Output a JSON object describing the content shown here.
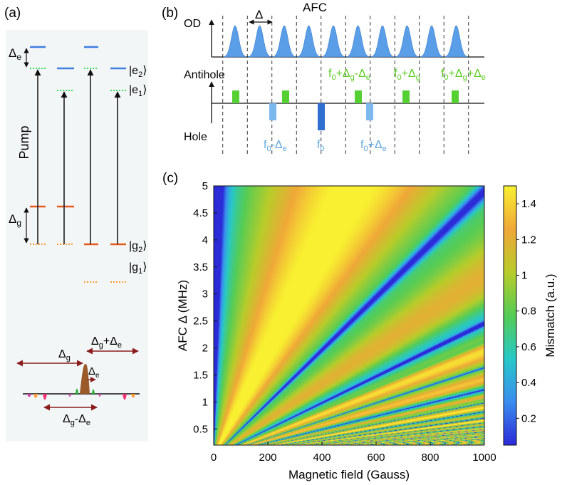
{
  "panel_a": {
    "label": "(a)",
    "pump": "Pump",
    "delta_e": "Δ",
    "delta_e_sub": "e",
    "delta_g": "Δ",
    "delta_g_sub": "g",
    "levels": [
      {
        "text": "|e",
        "sub": "2",
        "close": "⟩"
      },
      {
        "text": "|e",
        "sub": "1",
        "close": "⟩"
      },
      {
        "text": "|g",
        "sub": "2",
        "close": "⟩"
      },
      {
        "text": "|g",
        "sub": "1",
        "close": "⟩"
      }
    ],
    "spectrum": {
      "dg": "Δ",
      "dg_sub": "g",
      "dgpe": "Δ",
      "dgpe_sub1": "g",
      "dgpe_plus": "+Δ",
      "dgpe_sub2": "e",
      "de": "Δ",
      "de_sub": "e",
      "dgme": "Δ",
      "dgme_sub1": "g",
      "dgme_minus": "-Δ",
      "dgme_sub2": "e"
    }
  },
  "panel_b": {
    "label": "(b)",
    "afc": "AFC",
    "od": "OD",
    "delta": "Δ",
    "antihole": "Antihole",
    "hole": "Hole",
    "antihole_labels": [
      {
        "a": "f",
        "s1": "0",
        "b": "+Δ",
        "s2": "g",
        "c": "-Δ",
        "s3": "e"
      },
      {
        "a": "f",
        "s1": "0",
        "b": "+Δ",
        "s2": "g"
      },
      {
        "a": "f",
        "s1": "0",
        "b": "+Δ",
        "s2": "g",
        "c": "+Δ",
        "s3": "e"
      }
    ],
    "hole_labels": [
      {
        "a": "f",
        "s1": "0",
        "b": "-Δ",
        "s2": "e"
      },
      {
        "a": "f",
        "s1": "0"
      },
      {
        "a": "f",
        "s1": "0",
        "b": "+Δ",
        "s2": "e"
      }
    ]
  },
  "panel_c": {
    "label": "(c)",
    "colorbar_label": "Mismatch (a.u.)",
    "colorbar_ticks": [
      "0.2",
      "0.4",
      "0.6",
      "0.8",
      "1",
      "1.2",
      "1.4"
    ]
  },
  "chart_data": {
    "type": "heatmap",
    "xlabel": "Magnetic field (Gauss)",
    "ylabel": "AFC Δ (MHz)",
    "xlim": [
      0,
      1000
    ],
    "ylim": [
      0.2,
      5
    ],
    "xticks": [
      "0",
      "200",
      "400",
      "600",
      "800",
      "1000"
    ],
    "yticks": [
      "0.5",
      "1",
      "1.5",
      "2",
      "2.5",
      "3",
      "3.5",
      "4",
      "4.5",
      "5"
    ],
    "zlim": [
      0.05,
      1.5
    ],
    "colormap": [
      "#2b2bd8",
      "#3a8ef0",
      "#27c8c8",
      "#55cc55",
      "#b8cc2a",
      "#f0a838",
      "#f8f030"
    ]
  },
  "colors": {
    "excited_level": "#3e7ee0",
    "ground_level": "#e85a1a",
    "level_dotted_green": "#33dd55",
    "level_dotted_orange": "#ff9933",
    "pulse_fill": "#5b9ee8",
    "antihole_fill": "#55d033",
    "hole_fill": "#7ab8ee",
    "text_green": "#5ccc22",
    "text_blue": "#62a8e0",
    "arrow_brown": "#8b1c1c",
    "panel_bg": "#f3f6f7"
  }
}
